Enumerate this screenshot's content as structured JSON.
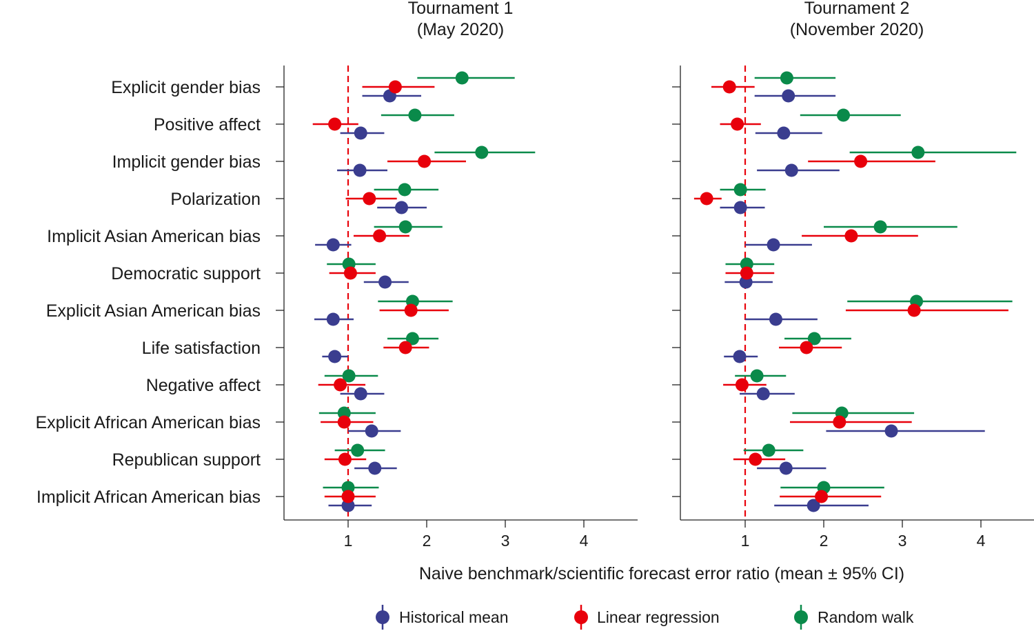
{
  "chart_data": {
    "type": "forest",
    "xlabel": "Naive benchmark/scientific forecast error ratio (mean ± 95% CI)",
    "categories": [
      "Explicit gender bias",
      "Positive affect",
      "Implicit gender bias",
      "Polarization",
      "Implicit Asian American bias",
      "Democratic support",
      "Explicit Asian American bias",
      "Life satisfaction",
      "Negative affect",
      "Explicit African American bias",
      "Republican support",
      "Implicit African American bias"
    ],
    "reference_line": 1,
    "xticks": [
      1,
      2,
      3,
      4
    ],
    "legend": [
      {
        "name": "Historical mean",
        "color": "#3a3d8f"
      },
      {
        "name": "Linear regression",
        "color": "#e8000b"
      },
      {
        "name": "Random walk",
        "color": "#0a8a4a"
      }
    ],
    "panels": [
      {
        "title_line1": "Tournament 1",
        "title_line2": "(May 2020)",
        "xlim": [
          0.2,
          4.7
        ],
        "series": [
          {
            "name": "Random walk",
            "points": [
              {
                "mean": 2.45,
                "lo": 1.88,
                "hi": 3.12
              },
              {
                "mean": 1.85,
                "lo": 1.42,
                "hi": 2.35
              },
              {
                "mean": 2.7,
                "lo": 2.1,
                "hi": 3.38
              },
              {
                "mean": 1.72,
                "lo": 1.33,
                "hi": 2.15
              },
              {
                "mean": 1.73,
                "lo": 1.33,
                "hi": 2.2
              },
              {
                "mean": 1.01,
                "lo": 0.73,
                "hi": 1.35
              },
              {
                "mean": 1.82,
                "lo": 1.38,
                "hi": 2.33
              },
              {
                "mean": 1.82,
                "lo": 1.5,
                "hi": 2.15
              },
              {
                "mean": 1.01,
                "lo": 0.7,
                "hi": 1.38
              },
              {
                "mean": 0.95,
                "lo": 0.63,
                "hi": 1.35
              },
              {
                "mean": 1.12,
                "lo": 0.83,
                "hi": 1.47
              },
              {
                "mean": 1.0,
                "lo": 0.68,
                "hi": 1.39
              }
            ]
          },
          {
            "name": "Linear regression",
            "points": [
              {
                "mean": 1.6,
                "lo": 1.18,
                "hi": 2.1
              },
              {
                "mean": 0.83,
                "lo": 0.55,
                "hi": 1.13
              },
              {
                "mean": 1.97,
                "lo": 1.5,
                "hi": 2.5
              },
              {
                "mean": 1.27,
                "lo": 0.97,
                "hi": 1.62
              },
              {
                "mean": 1.4,
                "lo": 1.07,
                "hi": 1.78
              },
              {
                "mean": 1.03,
                "lo": 0.76,
                "hi": 1.35
              },
              {
                "mean": 1.8,
                "lo": 1.4,
                "hi": 2.28
              },
              {
                "mean": 1.73,
                "lo": 1.45,
                "hi": 2.03
              },
              {
                "mean": 0.9,
                "lo": 0.62,
                "hi": 1.22
              },
              {
                "mean": 0.95,
                "lo": 0.65,
                "hi": 1.32
              },
              {
                "mean": 0.96,
                "lo": 0.7,
                "hi": 1.23
              },
              {
                "mean": 1.0,
                "lo": 0.7,
                "hi": 1.35
              }
            ]
          },
          {
            "name": "Historical mean",
            "points": [
              {
                "mean": 1.53,
                "lo": 1.18,
                "hi": 1.93
              },
              {
                "mean": 1.16,
                "lo": 0.9,
                "hi": 1.46
              },
              {
                "mean": 1.15,
                "lo": 0.86,
                "hi": 1.5
              },
              {
                "mean": 1.68,
                "lo": 1.37,
                "hi": 2.0
              },
              {
                "mean": 0.81,
                "lo": 0.58,
                "hi": 1.04
              },
              {
                "mean": 1.47,
                "lo": 1.2,
                "hi": 1.77
              },
              {
                "mean": 0.81,
                "lo": 0.57,
                "hi": 1.07
              },
              {
                "mean": 0.83,
                "lo": 0.67,
                "hi": 1.0
              },
              {
                "mean": 1.16,
                "lo": 0.9,
                "hi": 1.46
              },
              {
                "mean": 1.3,
                "lo": 1.0,
                "hi": 1.67
              },
              {
                "mean": 1.34,
                "lo": 1.08,
                "hi": 1.62
              },
              {
                "mean": 1.0,
                "lo": 0.75,
                "hi": 1.3
              }
            ]
          }
        ]
      },
      {
        "title_line1": "Tournament 2",
        "title_line2": "(November 2020)",
        "xlim": [
          0.2,
          4.7
        ],
        "series": [
          {
            "name": "Random walk",
            "points": [
              {
                "mean": 1.53,
                "lo": 1.12,
                "hi": 2.15
              },
              {
                "mean": 2.25,
                "lo": 1.7,
                "hi": 2.98
              },
              {
                "mean": 3.2,
                "lo": 2.33,
                "hi": 4.45
              },
              {
                "mean": 0.94,
                "lo": 0.68,
                "hi": 1.26
              },
              {
                "mean": 2.72,
                "lo": 2.0,
                "hi": 3.7
              },
              {
                "mean": 1.02,
                "lo": 0.75,
                "hi": 1.37
              },
              {
                "mean": 3.18,
                "lo": 2.3,
                "hi": 4.4
              },
              {
                "mean": 1.88,
                "lo": 1.5,
                "hi": 2.35
              },
              {
                "mean": 1.15,
                "lo": 0.87,
                "hi": 1.52
              },
              {
                "mean": 2.23,
                "lo": 1.6,
                "hi": 3.15
              },
              {
                "mean": 1.3,
                "lo": 0.98,
                "hi": 1.74
              },
              {
                "mean": 2.0,
                "lo": 1.45,
                "hi": 2.77
              }
            ]
          },
          {
            "name": "Linear regression",
            "points": [
              {
                "mean": 0.8,
                "lo": 0.57,
                "hi": 1.12
              },
              {
                "mean": 0.9,
                "lo": 0.68,
                "hi": 1.2
              },
              {
                "mean": 2.47,
                "lo": 1.8,
                "hi": 3.42
              },
              {
                "mean": 0.51,
                "lo": 0.35,
                "hi": 0.7
              },
              {
                "mean": 2.35,
                "lo": 1.72,
                "hi": 3.2
              },
              {
                "mean": 1.02,
                "lo": 0.75,
                "hi": 1.37
              },
              {
                "mean": 3.15,
                "lo": 2.28,
                "hi": 4.35
              },
              {
                "mean": 1.78,
                "lo": 1.43,
                "hi": 2.23
              },
              {
                "mean": 0.96,
                "lo": 0.72,
                "hi": 1.27
              },
              {
                "mean": 2.2,
                "lo": 1.57,
                "hi": 3.12
              },
              {
                "mean": 1.13,
                "lo": 0.85,
                "hi": 1.51
              },
              {
                "mean": 1.97,
                "lo": 1.44,
                "hi": 2.73
              }
            ]
          },
          {
            "name": "Historical mean",
            "points": [
              {
                "mean": 1.55,
                "lo": 1.12,
                "hi": 2.15
              },
              {
                "mean": 1.49,
                "lo": 1.13,
                "hi": 1.98
              },
              {
                "mean": 1.59,
                "lo": 1.15,
                "hi": 2.2
              },
              {
                "mean": 0.94,
                "lo": 0.68,
                "hi": 1.25
              },
              {
                "mean": 1.36,
                "lo": 1.0,
                "hi": 1.85
              },
              {
                "mean": 1.01,
                "lo": 0.74,
                "hi": 1.35
              },
              {
                "mean": 1.39,
                "lo": 1.0,
                "hi": 1.92
              },
              {
                "mean": 0.93,
                "lo": 0.73,
                "hi": 1.16
              },
              {
                "mean": 1.23,
                "lo": 0.93,
                "hi": 1.63
              },
              {
                "mean": 2.86,
                "lo": 2.03,
                "hi": 4.05
              },
              {
                "mean": 1.52,
                "lo": 1.15,
                "hi": 2.03
              },
              {
                "mean": 1.87,
                "lo": 1.37,
                "hi": 2.57
              }
            ]
          }
        ]
      }
    ]
  }
}
